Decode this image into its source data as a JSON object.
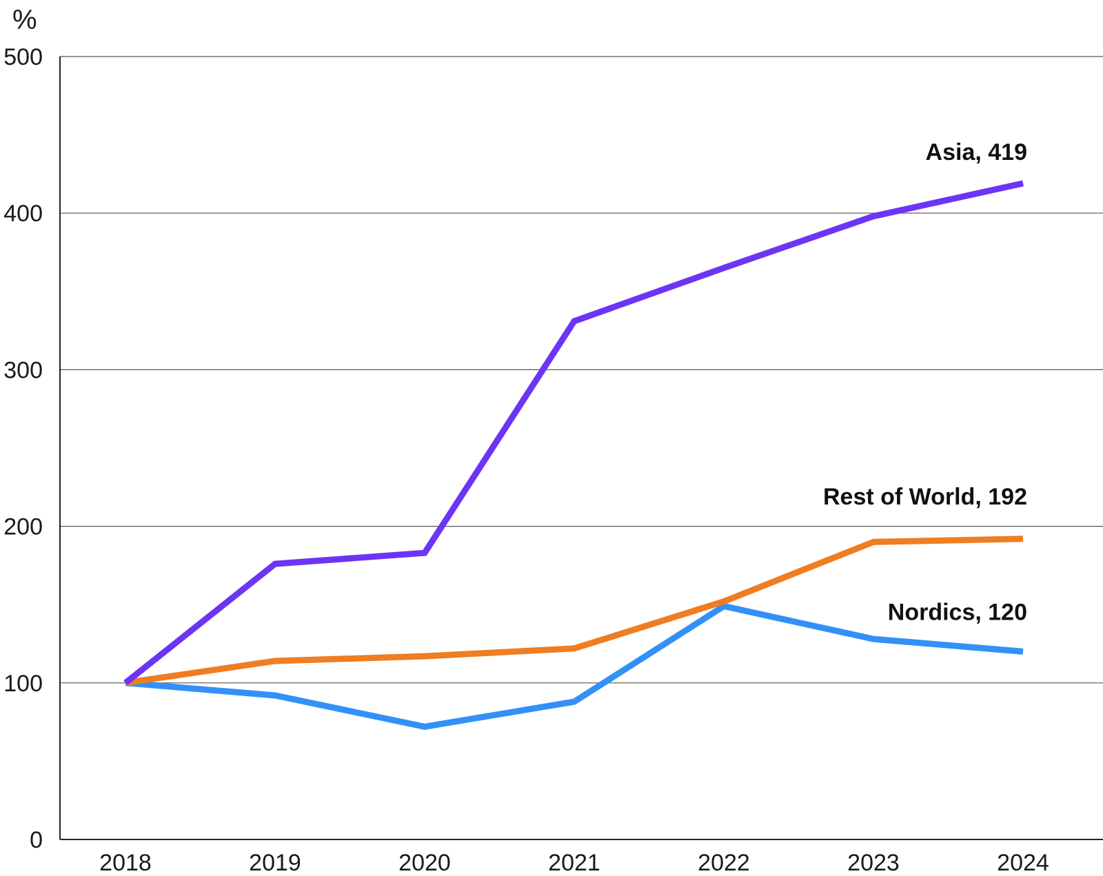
{
  "chart_data": {
    "type": "line",
    "ylabel": "%",
    "xlabel": "",
    "title": "",
    "ylim": [
      0,
      500
    ],
    "yticks": [
      0,
      100,
      200,
      300,
      400,
      500
    ],
    "categories": [
      "2018",
      "2019",
      "2020",
      "2021",
      "2022",
      "2023",
      "2024"
    ],
    "grid": "horizontal",
    "legend": "end-of-line labels",
    "series": [
      {
        "name": "Asia",
        "label": "Asia, 419",
        "color": "#6c35f5",
        "values": [
          100,
          176,
          183,
          331,
          365,
          398,
          419
        ]
      },
      {
        "name": "Rest of World",
        "label": "Rest of World, 192",
        "color": "#ef7d22",
        "values": [
          100,
          114,
          117,
          122,
          152,
          190,
          192
        ]
      },
      {
        "name": "Nordics",
        "label": "Nordics, 120",
        "color": "#3390f7",
        "values": [
          100,
          92,
          72,
          88,
          149,
          128,
          120
        ]
      }
    ]
  }
}
